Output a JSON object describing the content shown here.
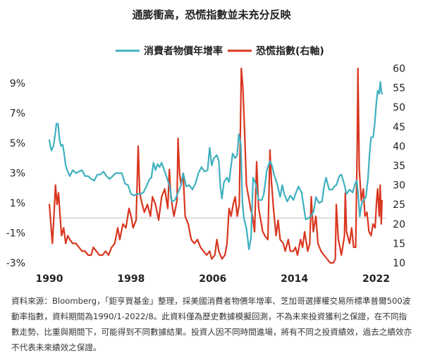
{
  "chart_data": {
    "type": "line",
    "title": "通膨衝高，恐慌指數並未充分反映",
    "legend_position": "top-center",
    "series": [
      {
        "name": "消費者物價年增率",
        "axis": "left",
        "color": "#3fb0bf",
        "points": [
          [
            1990.0,
            5.2
          ],
          [
            1990.2,
            4.5
          ],
          [
            1990.4,
            4.8
          ],
          [
            1990.55,
            5.5
          ],
          [
            1990.7,
            6.3
          ],
          [
            1990.85,
            6.3
          ],
          [
            1991.0,
            5.2
          ],
          [
            1991.15,
            4.8
          ],
          [
            1991.3,
            4.9
          ],
          [
            1991.45,
            4.3
          ],
          [
            1991.6,
            3.5
          ],
          [
            1991.8,
            3.1
          ],
          [
            1992.0,
            2.8
          ],
          [
            1992.3,
            3.2
          ],
          [
            1992.6,
            3.0
          ],
          [
            1992.9,
            3.1
          ],
          [
            1993.2,
            3.2
          ],
          [
            1993.5,
            2.8
          ],
          [
            1993.8,
            2.8
          ],
          [
            1994.1,
            2.6
          ],
          [
            1994.4,
            2.5
          ],
          [
            1994.7,
            2.9
          ],
          [
            1995.0,
            2.9
          ],
          [
            1995.3,
            3.1
          ],
          [
            1995.6,
            2.8
          ],
          [
            1995.9,
            2.6
          ],
          [
            1996.2,
            2.8
          ],
          [
            1996.5,
            3.0
          ],
          [
            1996.8,
            3.0
          ],
          [
            1997.1,
            3.0
          ],
          [
            1997.4,
            2.3
          ],
          [
            1997.7,
            2.2
          ],
          [
            1998.0,
            1.6
          ],
          [
            1998.3,
            1.5
          ],
          [
            1998.6,
            1.6
          ],
          [
            1998.9,
            1.6
          ],
          [
            1999.2,
            1.7
          ],
          [
            1999.5,
            2.1
          ],
          [
            1999.8,
            2.6
          ],
          [
            2000.0,
            2.7
          ],
          [
            2000.2,
            3.7
          ],
          [
            2000.4,
            3.2
          ],
          [
            2000.6,
            3.6
          ],
          [
            2000.8,
            3.4
          ],
          [
            2001.0,
            3.7
          ],
          [
            2001.2,
            3.3
          ],
          [
            2001.5,
            2.7
          ],
          [
            2001.8,
            2.1
          ],
          [
            2002.0,
            1.1
          ],
          [
            2002.3,
            1.2
          ],
          [
            2002.6,
            1.7
          ],
          [
            2002.9,
            2.2
          ],
          [
            2003.1,
            3.0
          ],
          [
            2003.4,
            2.1
          ],
          [
            2003.7,
            2.2
          ],
          [
            2004.0,
            1.9
          ],
          [
            2004.3,
            2.3
          ],
          [
            2004.6,
            3.0
          ],
          [
            2004.9,
            3.4
          ],
          [
            2005.2,
            3.1
          ],
          [
            2005.5,
            3.2
          ],
          [
            2005.7,
            4.7
          ],
          [
            2005.9,
            3.5
          ],
          [
            2006.1,
            4.0
          ],
          [
            2006.4,
            4.2
          ],
          [
            2006.6,
            3.8
          ],
          [
            2006.75,
            2.1
          ],
          [
            2006.9,
            1.3
          ],
          [
            2007.1,
            2.4
          ],
          [
            2007.4,
            2.7
          ],
          [
            2007.6,
            2.4
          ],
          [
            2007.8,
            3.5
          ],
          [
            2007.95,
            4.3
          ],
          [
            2008.2,
            4.0
          ],
          [
            2008.4,
            4.2
          ],
          [
            2008.55,
            5.6
          ],
          [
            2008.75,
            4.9
          ],
          [
            2008.9,
            1.1
          ],
          [
            2009.05,
            0.0
          ],
          [
            2009.3,
            -0.7
          ],
          [
            2009.55,
            -2.1
          ],
          [
            2009.75,
            -1.3
          ],
          [
            2009.95,
            2.7
          ],
          [
            2010.2,
            2.3
          ],
          [
            2010.5,
            1.2
          ],
          [
            2010.8,
            1.2
          ],
          [
            2011.0,
            1.6
          ],
          [
            2011.3,
            3.2
          ],
          [
            2011.6,
            3.8
          ],
          [
            2011.8,
            3.5
          ],
          [
            2012.0,
            2.9
          ],
          [
            2012.3,
            2.3
          ],
          [
            2012.6,
            1.4
          ],
          [
            2012.8,
            2.2
          ],
          [
            2013.0,
            1.6
          ],
          [
            2013.3,
            1.1
          ],
          [
            2013.6,
            1.5
          ],
          [
            2013.9,
            1.2
          ],
          [
            2014.1,
            1.6
          ],
          [
            2014.4,
            2.1
          ],
          [
            2014.7,
            1.7
          ],
          [
            2014.9,
            0.8
          ],
          [
            2015.1,
            -0.1
          ],
          [
            2015.4,
            0.0
          ],
          [
            2015.7,
            0.2
          ],
          [
            2015.9,
            0.5
          ],
          [
            2016.1,
            1.4
          ],
          [
            2016.4,
            1.0
          ],
          [
            2016.7,
            1.1
          ],
          [
            2016.9,
            2.1
          ],
          [
            2017.1,
            2.7
          ],
          [
            2017.4,
            1.9
          ],
          [
            2017.7,
            1.9
          ],
          [
            2017.9,
            2.1
          ],
          [
            2018.1,
            2.2
          ],
          [
            2018.4,
            2.8
          ],
          [
            2018.6,
            2.9
          ],
          [
            2018.9,
            2.2
          ],
          [
            2019.1,
            1.6
          ],
          [
            2019.4,
            1.9
          ],
          [
            2019.7,
            1.7
          ],
          [
            2019.95,
            2.3
          ],
          [
            2020.1,
            2.5
          ],
          [
            2020.25,
            1.5
          ],
          [
            2020.4,
            0.1
          ],
          [
            2020.6,
            1.0
          ],
          [
            2020.8,
            1.2
          ],
          [
            2021.0,
            1.4
          ],
          [
            2021.2,
            2.6
          ],
          [
            2021.35,
            4.2
          ],
          [
            2021.5,
            5.4
          ],
          [
            2021.7,
            5.4
          ],
          [
            2021.85,
            6.2
          ],
          [
            2022.0,
            7.5
          ],
          [
            2022.15,
            8.5
          ],
          [
            2022.3,
            8.3
          ],
          [
            2022.42,
            9.1
          ],
          [
            2022.5,
            8.5
          ],
          [
            2022.58,
            8.3
          ]
        ]
      },
      {
        "name": "恐慌指數(右軸)",
        "axis": "right",
        "color": "#d9361f",
        "points": [
          [
            1990.0,
            25
          ],
          [
            1990.15,
            20
          ],
          [
            1990.3,
            15
          ],
          [
            1990.45,
            22
          ],
          [
            1990.6,
            30
          ],
          [
            1990.75,
            25
          ],
          [
            1990.9,
            28
          ],
          [
            1991.05,
            22
          ],
          [
            1991.2,
            17
          ],
          [
            1991.4,
            19
          ],
          [
            1991.6,
            15
          ],
          [
            1991.8,
            17
          ],
          [
            1992.0,
            16
          ],
          [
            1992.3,
            15
          ],
          [
            1992.6,
            15
          ],
          [
            1992.9,
            14
          ],
          [
            1993.2,
            13
          ],
          [
            1993.5,
            13
          ],
          [
            1993.8,
            12
          ],
          [
            1994.1,
            12
          ],
          [
            1994.3,
            14
          ],
          [
            1994.6,
            13
          ],
          [
            1994.9,
            12
          ],
          [
            1995.2,
            12
          ],
          [
            1995.5,
            13
          ],
          [
            1995.8,
            12
          ],
          [
            1996.1,
            14
          ],
          [
            1996.4,
            15
          ],
          [
            1996.7,
            19
          ],
          [
            1996.9,
            16
          ],
          [
            1997.2,
            20
          ],
          [
            1997.5,
            19
          ],
          [
            1997.8,
            24
          ],
          [
            1998.0,
            22
          ],
          [
            1998.2,
            19
          ],
          [
            1998.5,
            21
          ],
          [
            1998.7,
            40
          ],
          [
            1998.85,
            28
          ],
          [
            1999.0,
            26
          ],
          [
            1999.3,
            23
          ],
          [
            1999.6,
            25
          ],
          [
            1999.9,
            22
          ],
          [
            2000.1,
            27
          ],
          [
            2000.4,
            25
          ],
          [
            2000.7,
            21
          ],
          [
            2001.0,
            27
          ],
          [
            2001.3,
            29
          ],
          [
            2001.6,
            24
          ],
          [
            2001.75,
            34
          ],
          [
            2001.9,
            27
          ],
          [
            2002.2,
            22
          ],
          [
            2002.5,
            26
          ],
          [
            2002.6,
            42
          ],
          [
            2002.75,
            33
          ],
          [
            2002.9,
            30
          ],
          [
            2003.1,
            33
          ],
          [
            2003.3,
            22
          ],
          [
            2003.6,
            20
          ],
          [
            2003.9,
            16
          ],
          [
            2004.2,
            15
          ],
          [
            2004.5,
            16
          ],
          [
            2004.8,
            14
          ],
          [
            2005.1,
            13
          ],
          [
            2005.4,
            12
          ],
          [
            2005.7,
            13
          ],
          [
            2005.9,
            11
          ],
          [
            2006.2,
            12
          ],
          [
            2006.4,
            16
          ],
          [
            2006.6,
            13
          ],
          [
            2006.9,
            11
          ],
          [
            2007.2,
            12
          ],
          [
            2007.4,
            15
          ],
          [
            2007.6,
            24
          ],
          [
            2007.8,
            22
          ],
          [
            2008.0,
            25
          ],
          [
            2008.2,
            27
          ],
          [
            2008.4,
            22
          ],
          [
            2008.6,
            25
          ],
          [
            2008.8,
            60
          ],
          [
            2008.95,
            55
          ],
          [
            2009.1,
            45
          ],
          [
            2009.3,
            30
          ],
          [
            2009.5,
            27
          ],
          [
            2009.7,
            24
          ],
          [
            2009.9,
            22
          ],
          [
            2010.1,
            18
          ],
          [
            2010.3,
            36
          ],
          [
            2010.5,
            24
          ],
          [
            2010.7,
            21
          ],
          [
            2010.9,
            18
          ],
          [
            2011.1,
            17
          ],
          [
            2011.4,
            16
          ],
          [
            2011.6,
            39
          ],
          [
            2011.75,
            31
          ],
          [
            2011.95,
            24
          ],
          [
            2012.2,
            17
          ],
          [
            2012.4,
            21
          ],
          [
            2012.6,
            16
          ],
          [
            2012.9,
            15
          ],
          [
            2013.1,
            13
          ],
          [
            2013.4,
            16
          ],
          [
            2013.6,
            13
          ],
          [
            2013.9,
            13
          ],
          [
            2014.1,
            14
          ],
          [
            2014.3,
            12
          ],
          [
            2014.6,
            16
          ],
          [
            2014.8,
            14
          ],
          [
            2015.0,
            18
          ],
          [
            2015.3,
            13
          ],
          [
            2015.5,
            15
          ],
          [
            2015.65,
            27
          ],
          [
            2015.85,
            18
          ],
          [
            2016.1,
            22
          ],
          [
            2016.3,
            15
          ],
          [
            2016.6,
            13
          ],
          [
            2016.9,
            12
          ],
          [
            2017.2,
            11
          ],
          [
            2017.5,
            10
          ],
          [
            2017.8,
            10
          ],
          [
            2018.0,
            11
          ],
          [
            2018.1,
            25
          ],
          [
            2018.3,
            16
          ],
          [
            2018.6,
            12
          ],
          [
            2018.9,
            17
          ],
          [
            2018.98,
            28
          ],
          [
            2019.1,
            18
          ],
          [
            2019.4,
            15
          ],
          [
            2019.6,
            19
          ],
          [
            2019.8,
            14
          ],
          [
            2020.0,
            14
          ],
          [
            2020.15,
            40
          ],
          [
            2020.22,
            60
          ],
          [
            2020.35,
            34
          ],
          [
            2020.55,
            26
          ],
          [
            2020.75,
            29
          ],
          [
            2020.9,
            22
          ],
          [
            2021.1,
            23
          ],
          [
            2021.3,
            18
          ],
          [
            2021.5,
            17
          ],
          [
            2021.7,
            20
          ],
          [
            2021.9,
            19
          ],
          [
            2022.05,
            26
          ],
          [
            2022.15,
            29
          ],
          [
            2022.3,
            22
          ],
          [
            2022.4,
            30
          ],
          [
            2022.5,
            20
          ],
          [
            2022.58,
            26
          ]
        ]
      }
    ],
    "left_axis": {
      "ylim": [
        -3,
        10
      ],
      "ticks": [
        9,
        7,
        5,
        3,
        1,
        -1,
        -3
      ],
      "tick_labels": [
        "9%",
        "7%",
        "5%",
        "3%",
        "1%",
        "-1%",
        "-3%"
      ]
    },
    "right_axis": {
      "ylim": [
        10,
        60
      ],
      "ticks": [
        60,
        55,
        50,
        45,
        40,
        35,
        30,
        25,
        20,
        15,
        10
      ],
      "tick_labels": [
        "60",
        "55",
        "50",
        "45",
        "40",
        "35",
        "30",
        "25",
        "20",
        "15",
        "10"
      ]
    },
    "x_axis": {
      "xlim": [
        1990,
        2023
      ],
      "ticks": [
        1990,
        1998,
        2006,
        2014,
        2022
      ],
      "tick_labels": [
        "1990",
        "1998",
        "2006",
        "2014",
        "2022"
      ]
    },
    "grid": false
  },
  "note": "資料來源：Bloomberg，「鉅亨買基金」整理，採美國消費者物價年增率、芝加哥選擇權交易所標準普爾500波動率指數，資料期間為1990/1-2022/8。此資料僅為歷史數據模擬回測，不為未來投資獲利之保證，在不同指數走勢、比重與期間下，可能得到不同數據結果。投資人因不同時間進場，將有不同之投資績效，過去之績效亦不代表未來績效之保證。"
}
